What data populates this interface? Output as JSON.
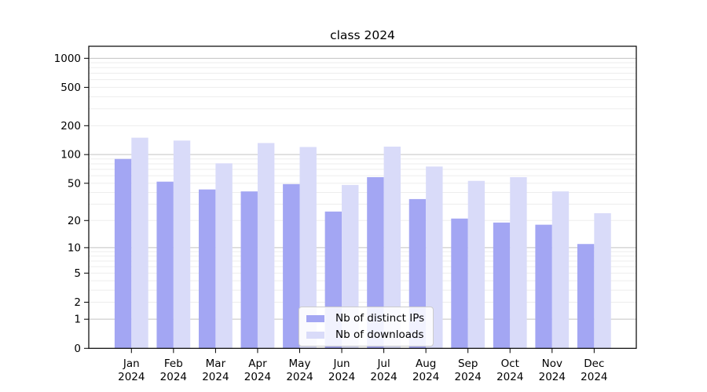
{
  "title": "class 2024",
  "chart_data": {
    "type": "bar",
    "title": "class 2024",
    "x_months": [
      "Jan",
      "Feb",
      "Mar",
      "Apr",
      "May",
      "Jun",
      "Jul",
      "Aug",
      "Sep",
      "Oct",
      "Nov",
      "Dec"
    ],
    "x_year": "2024",
    "series": [
      {
        "name": "Nb of distinct IPs",
        "color": "#a3a6f3",
        "values": [
          90,
          52,
          43,
          41,
          49,
          25,
          58,
          34,
          21,
          19,
          18,
          11
        ]
      },
      {
        "name": "Nb of downloads",
        "color": "#d9dbf9",
        "values": [
          150,
          140,
          81,
          132,
          120,
          48,
          121,
          75,
          53,
          58,
          41,
          24
        ]
      }
    ],
    "y_ticks": [
      0,
      1,
      2,
      5,
      10,
      20,
      50,
      100,
      200,
      500,
      1000
    ],
    "y_scale": "log1p",
    "ylim": [
      0,
      1000
    ],
    "grid": true,
    "legend_position": "lower center"
  },
  "colors": {
    "major_grid": "#c3c3c3",
    "minor_grid": "#ededed",
    "axis": "#000000",
    "legend_border": "#cccccc"
  }
}
